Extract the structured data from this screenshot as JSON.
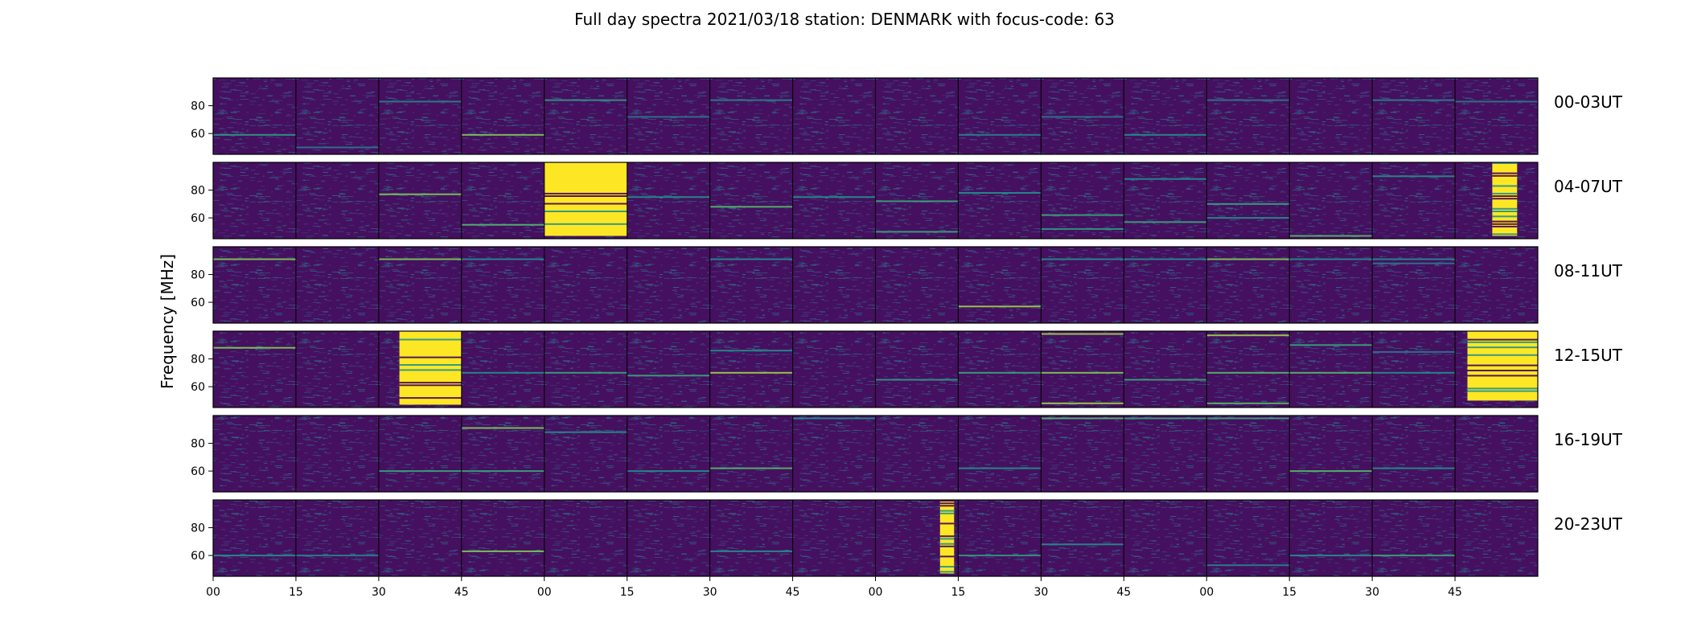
{
  "chart_data": {
    "type": "heatmap",
    "title": "Full day spectra 2021/03/18 station: DENMARK with focus-code: 63",
    "ylabel": "Frequency [MHz]",
    "xlabel": "",
    "x_tick_labels": [
      "00",
      "15",
      "30",
      "45",
      "00",
      "15",
      "30",
      "45",
      "00",
      "15",
      "30",
      "45",
      "00",
      "15",
      "30",
      "45"
    ],
    "y_ticks": [
      60,
      80
    ],
    "ylim": [
      45,
      100
    ],
    "colormap": "viridis",
    "rows": [
      {
        "label": "00-03UT",
        "events": [],
        "lines": [
          [
            0,
            59,
            0.55
          ],
          [
            1,
            50,
            0.4
          ],
          [
            2,
            83,
            0.45
          ],
          [
            3,
            59,
            0.8
          ],
          [
            4,
            84,
            0.55
          ],
          [
            5,
            72,
            0.4
          ],
          [
            6,
            84,
            0.45
          ],
          [
            9,
            59,
            0.45
          ],
          [
            10,
            72,
            0.4
          ],
          [
            11,
            59,
            0.5
          ],
          [
            12,
            84,
            0.4
          ],
          [
            14,
            84,
            0.45
          ],
          [
            15,
            83,
            0.4
          ]
        ]
      },
      {
        "label": "04-07UT",
        "events": [
          [
            4,
            0.0,
            1.0,
            47,
            100
          ],
          [
            15,
            0.45,
            0.75,
            47,
            100
          ]
        ],
        "lines": [
          [
            2,
            77,
            0.8
          ],
          [
            3,
            55,
            0.7
          ],
          [
            5,
            75,
            0.5
          ],
          [
            6,
            68,
            0.7
          ],
          [
            7,
            75,
            0.5
          ],
          [
            8,
            50,
            0.6
          ],
          [
            8,
            72,
            0.6
          ],
          [
            9,
            78,
            0.5
          ],
          [
            10,
            62,
            0.6
          ],
          [
            11,
            88,
            0.5
          ],
          [
            12,
            70,
            0.6
          ],
          [
            12,
            60,
            0.5
          ],
          [
            13,
            47,
            0.7
          ],
          [
            14,
            90,
            0.5
          ],
          [
            11,
            57,
            0.6
          ],
          [
            10,
            52,
            0.55
          ]
        ]
      },
      {
        "label": "08-11UT",
        "events": [],
        "lines": [
          [
            0,
            91,
            0.8
          ],
          [
            2,
            91,
            0.8
          ],
          [
            3,
            91,
            0.5
          ],
          [
            6,
            91,
            0.5
          ],
          [
            9,
            57,
            0.85
          ],
          [
            10,
            91,
            0.5
          ],
          [
            11,
            91,
            0.5
          ],
          [
            12,
            91,
            0.8
          ],
          [
            13,
            91,
            0.5
          ],
          [
            14,
            91,
            0.5
          ],
          [
            14,
            88,
            0.4
          ]
        ]
      },
      {
        "label": "12-15UT",
        "events": [
          [
            2,
            0.25,
            1.0,
            47,
            100
          ],
          [
            15,
            0.15,
            1.0,
            50,
            100
          ]
        ],
        "lines": [
          [
            0,
            88,
            0.8
          ],
          [
            3,
            70,
            0.5
          ],
          [
            4,
            70,
            0.6
          ],
          [
            5,
            68,
            0.6
          ],
          [
            6,
            70,
            0.85
          ],
          [
            6,
            86,
            0.5
          ],
          [
            8,
            65,
            0.55
          ],
          [
            9,
            70,
            0.6
          ],
          [
            10,
            98,
            0.85
          ],
          [
            10,
            70,
            0.8
          ],
          [
            10,
            48,
            0.85
          ],
          [
            11,
            65,
            0.6
          ],
          [
            12,
            97,
            0.85
          ],
          [
            12,
            70,
            0.7
          ],
          [
            12,
            48,
            0.7
          ],
          [
            13,
            70,
            0.7
          ],
          [
            13,
            90,
            0.6
          ],
          [
            14,
            70,
            0.5
          ],
          [
            14,
            85,
            0.4
          ]
        ]
      },
      {
        "label": "16-19UT",
        "events": [],
        "lines": [
          [
            2,
            60,
            0.6
          ],
          [
            3,
            91,
            0.8
          ],
          [
            3,
            60,
            0.6
          ],
          [
            4,
            88,
            0.5
          ],
          [
            5,
            60,
            0.5
          ],
          [
            6,
            62,
            0.7
          ],
          [
            7,
            98,
            0.5
          ],
          [
            9,
            62,
            0.5
          ],
          [
            10,
            98,
            0.7
          ],
          [
            11,
            98,
            0.6
          ],
          [
            12,
            98,
            0.6
          ],
          [
            13,
            60,
            0.7
          ],
          [
            14,
            62,
            0.5
          ]
        ]
      },
      {
        "label": "20-23UT",
        "events": [
          [
            8,
            0.78,
            0.95,
            47,
            100
          ]
        ],
        "lines": [
          [
            0,
            60,
            0.5
          ],
          [
            1,
            60,
            0.45
          ],
          [
            3,
            63,
            0.8
          ],
          [
            6,
            63,
            0.5
          ],
          [
            9,
            60,
            0.55
          ],
          [
            10,
            68,
            0.5
          ],
          [
            12,
            53,
            0.45
          ],
          [
            13,
            60,
            0.5
          ],
          [
            14,
            60,
            0.6
          ]
        ]
      }
    ]
  }
}
